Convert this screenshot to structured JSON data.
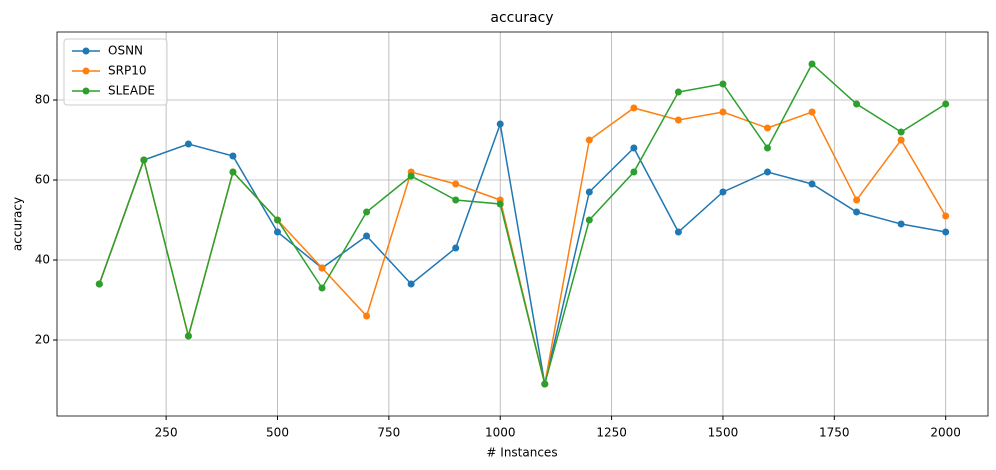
{
  "chart_data": {
    "type": "line",
    "title": "accuracy",
    "x_label": "# Instances",
    "y_label": "accuracy",
    "x": [
      100,
      200,
      300,
      400,
      500,
      600,
      700,
      800,
      900,
      1000,
      1100,
      1200,
      1300,
      1400,
      1500,
      1600,
      1700,
      1800,
      1900,
      2000
    ],
    "series": [
      {
        "name": "OSNN",
        "color": "#1f77b4",
        "values": [
          34,
          65,
          69,
          66,
          47,
          38,
          46,
          34,
          43,
          74,
          9,
          57,
          68,
          47,
          57,
          62,
          59,
          52,
          49,
          47
        ]
      },
      {
        "name": "SRP10",
        "color": "#ff7f0e",
        "values": [
          34,
          65,
          21,
          62,
          50,
          38,
          26,
          62,
          59,
          55,
          9,
          70,
          78,
          75,
          77,
          73,
          77,
          55,
          70,
          51
        ]
      },
      {
        "name": "SLEADE",
        "color": "#2ca02c",
        "values": [
          34,
          65,
          21,
          62,
          50,
          33,
          52,
          61,
          55,
          54,
          9,
          50,
          62,
          82,
          84,
          68,
          89,
          79,
          72,
          79
        ]
      }
    ],
    "xlim": [
      5,
      2095
    ],
    "xticks": [
      250,
      500,
      750,
      1000,
      1250,
      1500,
      1750,
      2000
    ],
    "ylim": [
      1,
      97
    ],
    "yticks": [
      20,
      40,
      60,
      80
    ],
    "grid": true,
    "legend": "upper-left"
  }
}
